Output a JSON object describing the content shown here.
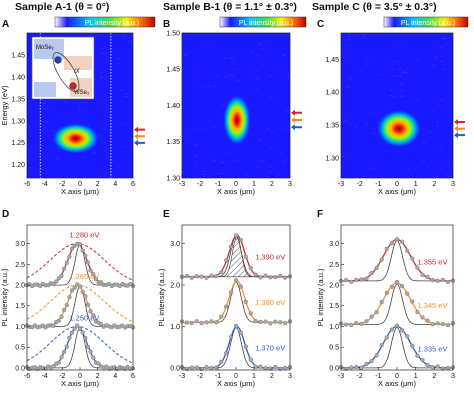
{
  "headers": [
    "Sample A-1 (θ = 0°)",
    "Sample B-1 (θ = 1.1° ± 0.3°)",
    "Sample C (θ = 3.5° ± 0.3°)"
  ],
  "panel_letters": [
    "A",
    "B",
    "C",
    "D",
    "E",
    "F"
  ],
  "colorbar_label": "PL intensity (a.u.)",
  "inset": {
    "top_label": "MoSe₂",
    "ix_label": "IX",
    "bottom_label": "WSe₂"
  },
  "colors": {
    "red": "#d62728",
    "orange": "#ff8c1a",
    "blue": "#1f5fd6",
    "gray": "#777777",
    "dark": "#222222"
  },
  "chart_data": [
    {
      "type": "heatmap",
      "panel": "A",
      "xlabel": "X axis (μm)",
      "ylabel": "Energy (eV)",
      "xlim": [
        -6,
        6
      ],
      "ylim": [
        1.17,
        1.5
      ],
      "xticks": [
        -6,
        -4,
        -2,
        0,
        2,
        4,
        6
      ],
      "yticks": [
        1.2,
        1.25,
        1.3,
        1.35,
        1.4,
        1.45
      ],
      "spot": {
        "x": -0.5,
        "energy": 1.26,
        "width": 1.9,
        "height": 0.022
      },
      "dotted_lines_x": [
        -4.5,
        3.5
      ],
      "arrows": [
        {
          "color": "red",
          "energy": 1.28
        },
        {
          "color": "orange",
          "energy": 1.265
        },
        {
          "color": "blue",
          "energy": 1.25
        }
      ]
    },
    {
      "type": "heatmap",
      "panel": "B",
      "xlabel": "X axis (μm)",
      "ylabel": "",
      "xlim": [
        -3,
        3
      ],
      "ylim": [
        1.3,
        1.5
      ],
      "xticks": [
        -3,
        -2,
        -1,
        0,
        1,
        2,
        3
      ],
      "yticks": [
        1.3,
        1.35,
        1.4,
        1.45,
        1.5
      ],
      "spot": {
        "x": 0.05,
        "energy": 1.38,
        "width": 0.55,
        "height": 0.022
      },
      "arrows": [
        {
          "color": "red",
          "energy": 1.39
        },
        {
          "color": "orange",
          "energy": 1.38
        },
        {
          "color": "blue",
          "energy": 1.37
        }
      ]
    },
    {
      "type": "heatmap",
      "panel": "C",
      "xlabel": "X axis (μm)",
      "ylabel": "",
      "xlim": [
        -3,
        3
      ],
      "ylim": [
        1.27,
        1.49
      ],
      "xticks": [
        -3,
        -2,
        -1,
        0,
        1,
        2,
        3
      ],
      "yticks": [
        1.3,
        1.35,
        1.4,
        1.45
      ],
      "spot": {
        "x": 0.1,
        "energy": 1.345,
        "width": 0.85,
        "height": 0.018
      },
      "arrows": [
        {
          "color": "red",
          "energy": 1.355
        },
        {
          "color": "orange",
          "energy": 1.345
        },
        {
          "color": "blue",
          "energy": 1.335
        }
      ]
    },
    {
      "type": "line",
      "panel": "D",
      "xlabel": "X axis (μm)",
      "ylabel": "PL intensity (a.u.)",
      "xlim": [
        -6,
        6
      ],
      "ylim": [
        -0.05,
        3.45
      ],
      "xticks": [
        -6,
        -4,
        -2,
        0,
        2,
        4,
        6
      ],
      "yticks": [
        0.0,
        0.5,
        1.0,
        1.5,
        2.0,
        2.5,
        3.0
      ],
      "series": [
        {
          "name": "1.280 eV",
          "color": "red",
          "offset": 2.0,
          "center": -0.3,
          "amp": 1.0,
          "width": 2.3,
          "dashed_width": 3.6
        },
        {
          "name": "1.265 eV",
          "color": "orange",
          "offset": 1.0,
          "center": -0.3,
          "amp": 1.0,
          "width": 2.3,
          "dashed_width": 3.6
        },
        {
          "name": "1.250 eV",
          "color": "blue",
          "offset": 0.0,
          "center": -0.3,
          "amp": 1.0,
          "width": 2.3,
          "dashed_width": 3.6
        }
      ],
      "laser": {
        "center": 0.0,
        "width": 0.65
      }
    },
    {
      "type": "line",
      "panel": "E",
      "xlabel": "X axis (μm)",
      "ylabel": "PL intensity (a.u.)",
      "xlim": [
        -3,
        3
      ],
      "ylim": [
        -0.05,
        3.45
      ],
      "xticks": [
        -3,
        -2,
        -1,
        0,
        1,
        2,
        3
      ],
      "yticks": [
        0.0,
        1.0,
        2.0,
        3.0
      ],
      "series": [
        {
          "name": "1.390 eV",
          "color": "red",
          "offset": 2.2,
          "center": 0.05,
          "amp": 1.0,
          "width": 0.5
        },
        {
          "name": "1.380 eV",
          "color": "orange",
          "offset": 1.1,
          "center": 0.05,
          "amp": 1.0,
          "width": 0.5
        },
        {
          "name": "1.370 eV",
          "color": "blue",
          "offset": 0.0,
          "center": 0.05,
          "amp": 1.0,
          "width": 0.5
        }
      ],
      "laser": {
        "center": 0.0,
        "width": 0.35
      }
    },
    {
      "type": "line",
      "panel": "F",
      "xlabel": "X axis (μm)",
      "ylabel": "PL intensity (a.u.)",
      "xlim": [
        -3,
        3
      ],
      "ylim": [
        -0.05,
        3.45
      ],
      "xticks": [
        -3,
        -2,
        -1,
        0,
        1,
        2,
        3
      ],
      "yticks": [
        0.0,
        0.5,
        1.0,
        1.5,
        2.0,
        2.5,
        3.0
      ],
      "series": [
        {
          "name": "1.355 eV",
          "color": "red",
          "offset": 2.1,
          "center": 0.0,
          "amp": 1.0,
          "width": 0.85
        },
        {
          "name": "1.345 eV",
          "color": "orange",
          "offset": 1.05,
          "center": 0.0,
          "amp": 1.0,
          "width": 0.85
        },
        {
          "name": "1.335 eV",
          "color": "blue",
          "offset": 0.0,
          "center": 0.0,
          "amp": 1.0,
          "width": 0.85
        }
      ],
      "laser": {
        "center": 0.0,
        "width": 0.35
      }
    }
  ]
}
